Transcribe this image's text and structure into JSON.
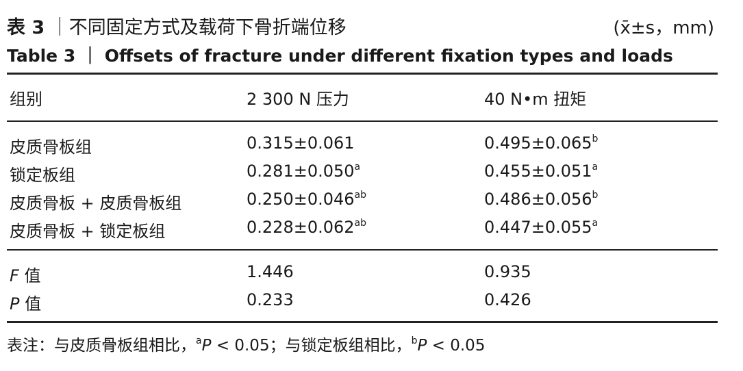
{
  "title": {
    "cn_label": "表 3",
    "cn_sep": "｜",
    "cn_text": "不同固定方式及载荷下骨折端位移",
    "unit": "(x̄±s，mm)",
    "en_label": "Table 3",
    "en_sep": "｜",
    "en_text": "Offsets of fracture under different fixation types and loads"
  },
  "table": {
    "header": [
      "组别",
      "2 300 N 压力",
      "40 N•m 扭矩"
    ],
    "groups": [
      [
        {
          "label": "皮质骨板组",
          "cells": [
            {
              "value": "0.315±0.061"
            },
            {
              "value": "0.495±0.065",
              "sup": "b"
            }
          ]
        },
        {
          "label": "锁定板组",
          "cells": [
            {
              "value": "0.281±0.050",
              "sup": "a"
            },
            {
              "value": "0.455±0.051",
              "sup": "a"
            }
          ]
        },
        {
          "label": "皮质骨板 + 皮质骨板组",
          "cells": [
            {
              "value": "0.250±0.046",
              "sup": "ab"
            },
            {
              "value": "0.486±0.056",
              "sup": "b"
            }
          ]
        },
        {
          "label": "皮质骨板 + 锁定板组",
          "cells": [
            {
              "value": "0.228±0.062",
              "sup": "ab"
            },
            {
              "value": "0.447±0.055",
              "sup": "a"
            }
          ]
        }
      ],
      [
        {
          "label_italic": "F",
          "label": "值",
          "cells": [
            {
              "value": "1.446"
            },
            {
              "value": "0.935"
            }
          ]
        },
        {
          "label_italic": "P",
          "label": "值",
          "cells": [
            {
              "value": "0.233"
            },
            {
              "value": "0.426"
            }
          ]
        }
      ]
    ]
  },
  "footnote": {
    "prefix": "表注：与皮质骨板组相比，",
    "sup1": "a",
    "p1": "P",
    "text1": " < 0.05；与锁定板组相比，",
    "sup2": "b",
    "p2": "P",
    "text2": " < 0.05"
  }
}
